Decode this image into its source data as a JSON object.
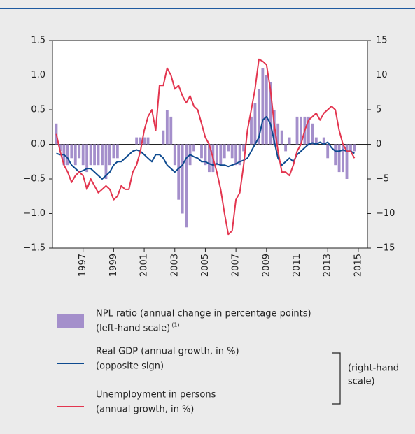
{
  "chart_data": {
    "type": "bar_line",
    "x": [
      1995.25,
      1995.5,
      1995.75,
      1996,
      1996.25,
      1996.5,
      1996.75,
      1997,
      1997.25,
      1997.5,
      1997.75,
      1998,
      1998.25,
      1998.5,
      1998.75,
      1999,
      1999.25,
      1999.5,
      1999.75,
      2000,
      2000.25,
      2000.5,
      2000.75,
      2001,
      2001.25,
      2001.5,
      2001.75,
      2002,
      2002.25,
      2002.5,
      2002.75,
      2003,
      2003.25,
      2003.5,
      2003.75,
      2004,
      2004.25,
      2004.5,
      2004.75,
      2005,
      2005.25,
      2005.5,
      2005.75,
      2006,
      2006.25,
      2006.5,
      2006.75,
      2007,
      2007.25,
      2007.5,
      2007.75,
      2008,
      2008.25,
      2008.5,
      2008.75,
      2009,
      2009.25,
      2009.5,
      2009.75,
      2010,
      2010.25,
      2010.5,
      2010.75,
      2011,
      2011.25,
      2011.5,
      2011.75,
      2012,
      2012.25,
      2012.5,
      2012.75,
      2013,
      2013.25,
      2013.5,
      2013.75,
      2014,
      2014.25,
      2014.5,
      2014.75
    ],
    "xlim": [
      1995,
      2015.6
    ],
    "xticks": [
      1997,
      1999,
      2001,
      2003,
      2005,
      2007,
      2009,
      2011,
      2013,
      2015
    ],
    "ylim": [
      -1.5,
      1.5
    ],
    "yticks": [
      {
        "value": -1.5,
        "label": "−1.5"
      },
      {
        "value": -1,
        "label": "−1.0"
      },
      {
        "value": -0.5,
        "label": "−0.5"
      },
      {
        "value": 0,
        "label": "0.0"
      },
      {
        "value": 0.5,
        "label": "0.5"
      },
      {
        "value": 1,
        "label": "1.0"
      },
      {
        "value": 1.5,
        "label": "1.5"
      }
    ],
    "y2lim": [
      -15,
      15
    ],
    "y2ticks": [
      {
        "value": -15,
        "label": "−15"
      },
      {
        "value": -10,
        "label": "−10"
      },
      {
        "value": -5,
        "label": "−5"
      },
      0,
      5,
      10,
      15
    ],
    "series": [
      {
        "name": "NPL ratio (annual change in percentage points)",
        "note": "(left-hand scale)",
        "footnote": "(1)",
        "type": "bar",
        "color": "#a48fcb",
        "values": [
          0.3,
          -0.1,
          -0.3,
          -0.3,
          -0.2,
          -0.3,
          -0.2,
          -0.3,
          -0.4,
          -0.3,
          -0.3,
          -0.3,
          -0.3,
          -0.5,
          -0.3,
          -0.2,
          -0.2,
          0,
          0,
          0,
          0,
          0.1,
          0.1,
          0.1,
          0.1,
          0,
          0,
          0,
          0.2,
          0.5,
          0.4,
          -0.3,
          -0.8,
          -1.0,
          -1.2,
          -0.3,
          -0.1,
          0,
          -0.2,
          -0.3,
          -0.4,
          -0.4,
          -0.3,
          -0.3,
          -0.2,
          -0.1,
          -0.2,
          -0.3,
          -0.3,
          -0.1,
          0,
          0.4,
          0.6,
          0.8,
          1.1,
          1.0,
          0.9,
          0.5,
          0.3,
          0.2,
          -0.1,
          0.1,
          0,
          0.4,
          0.4,
          0.4,
          0.4,
          0.3,
          0.1,
          0,
          0.1,
          -0.2,
          0,
          -0.3,
          -0.4,
          -0.4,
          -0.5,
          -0.1,
          -0.1
        ]
      },
      {
        "name": "Real GDP (annual growth, in %)",
        "note": "(opposite sign)",
        "type": "line",
        "axis": "y2",
        "color": "#0d4a8f",
        "values": [
          -1.3,
          -1.5,
          -1.5,
          -2.0,
          -3.0,
          -3.5,
          -4.0,
          -3.8,
          -3.5,
          -3.5,
          -4.0,
          -4.5,
          -5.0,
          -4.5,
          -4.0,
          -3.0,
          -2.5,
          -2.5,
          -2.0,
          -1.5,
          -1.0,
          -0.8,
          -1.0,
          -1.5,
          -2.0,
          -2.5,
          -1.5,
          -1.5,
          -2.0,
          -3.0,
          -3.5,
          -4.0,
          -3.5,
          -3.0,
          -2.0,
          -1.5,
          -1.8,
          -2.0,
          -2.5,
          -2.5,
          -2.8,
          -3.0,
          -2.8,
          -3.0,
          -3.0,
          -3.2,
          -3.0,
          -2.8,
          -2.5,
          -2.3,
          -2.0,
          -1.0,
          0,
          1.0,
          3.5,
          4.0,
          3.0,
          0.5,
          -2.0,
          -3.0,
          -2.5,
          -2.0,
          -2.5,
          -1.5,
          -1.0,
          -0.5,
          0,
          0.2,
          0,
          0.3,
          0,
          0.3,
          -0.5,
          -1.0,
          -1.0,
          -0.8,
          -1.0,
          -1.0,
          -1.3
        ]
      },
      {
        "name": "Unemployment in persons",
        "note": "(annual growth, in %)",
        "type": "line",
        "axis": "y2",
        "color": "#e3354f",
        "values": [
          1.5,
          -1.0,
          -3.0,
          -4.0,
          -5.5,
          -4.5,
          -4.0,
          -4.5,
          -6.5,
          -5.0,
          -6.0,
          -7.0,
          -6.5,
          -6.0,
          -6.5,
          -8.0,
          -7.5,
          -6.0,
          -6.5,
          -6.5,
          -4.0,
          -3.0,
          -1.0,
          2.0,
          4.0,
          5.0,
          2.0,
          8.5,
          8.5,
          11.0,
          10.0,
          8.0,
          8.5,
          7.0,
          6.0,
          7.0,
          5.5,
          5.0,
          3.0,
          1.0,
          0,
          -2.0,
          -4.0,
          -6.5,
          -10.0,
          -13.0,
          -12.5,
          -8.0,
          -7.0,
          -3.0,
          2.0,
          5.0,
          8.0,
          12.3,
          12.0,
          11.5,
          8.0,
          3.0,
          -1.0,
          -4.0,
          -4.0,
          -4.5,
          -3.0,
          -1.0,
          0,
          2.0,
          3.5,
          4.0,
          4.5,
          3.5,
          4.5,
          5.0,
          5.5,
          5.0,
          2.0,
          0,
          -1.0,
          -1.0,
          -2.0
        ]
      }
    ],
    "right_scale_note": [
      "(right-hand",
      "scale)"
    ]
  }
}
